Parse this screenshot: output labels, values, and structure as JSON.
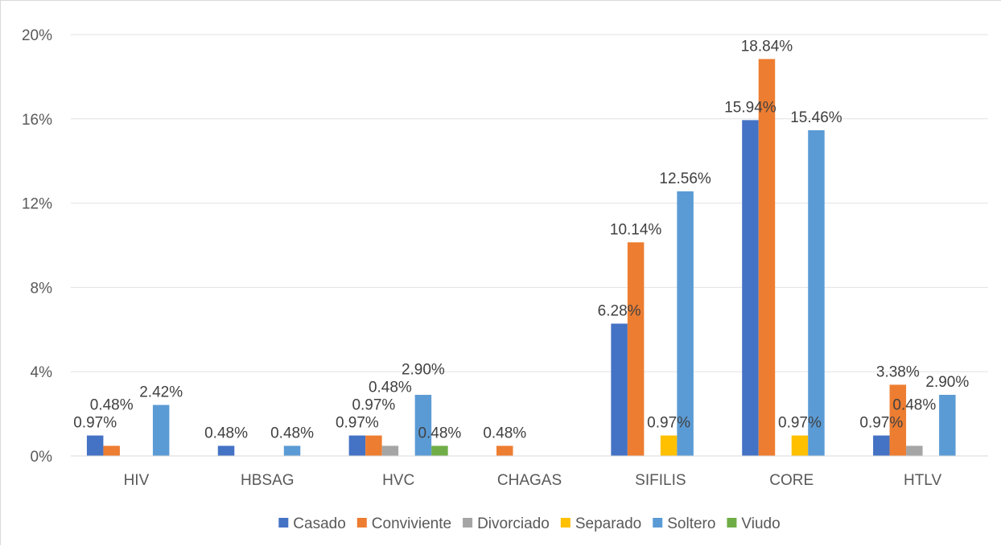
{
  "chart_data": {
    "type": "bar",
    "title": "",
    "xlabel": "",
    "ylabel": "",
    "categories": [
      "HIV",
      "HBSAG",
      "HVC",
      "CHAGAS",
      "SIFILIS",
      "CORE",
      "HTLV"
    ],
    "ylim": [
      0,
      20
    ],
    "yticks": [
      "0%",
      "4%",
      "8%",
      "12%",
      "16%",
      "20%"
    ],
    "grid": true,
    "legend_position": "bottom",
    "series": [
      {
        "name": "Casado",
        "color": "#4472c4",
        "values": [
          0.97,
          0.48,
          0.97,
          0,
          6.28,
          15.94,
          0.97
        ],
        "labels": [
          "0.97%",
          "0.48%",
          "0.97%",
          "",
          "6.28%",
          "15.94%",
          "0.97%"
        ]
      },
      {
        "name": "Conviviente",
        "color": "#ed7d31",
        "values": [
          0.48,
          0,
          0.97,
          0.48,
          10.14,
          18.84,
          3.38
        ],
        "labels": [
          "0.48%",
          "",
          "0.97%",
          "0.48%",
          "10.14%",
          "18.84%",
          "3.38%"
        ]
      },
      {
        "name": "Divorciado",
        "color": "#a5a5a5",
        "values": [
          0,
          0,
          0.48,
          0,
          0,
          0,
          0.48
        ],
        "labels": [
          "",
          "",
          "0.48%",
          "",
          "",
          "",
          "0.48%"
        ]
      },
      {
        "name": "Separado",
        "color": "#ffc000",
        "values": [
          0,
          0,
          0,
          0,
          0.97,
          0.97,
          0
        ],
        "labels": [
          "",
          "",
          "",
          "",
          "0.97%",
          "0.97%",
          ""
        ]
      },
      {
        "name": "Soltero",
        "color": "#5b9bd5",
        "values": [
          2.42,
          0.48,
          2.9,
          0,
          12.56,
          15.46,
          2.9
        ],
        "labels": [
          "2.42%",
          "0.48%",
          "2.90%",
          "",
          "12.56%",
          "15.46%",
          "2.90%"
        ]
      },
      {
        "name": "Viudo",
        "color": "#70ad47",
        "values": [
          0,
          0,
          0.48,
          0,
          0,
          0,
          0
        ],
        "labels": [
          "",
          "",
          "0.48%",
          "",
          "",
          "",
          ""
        ]
      }
    ]
  }
}
